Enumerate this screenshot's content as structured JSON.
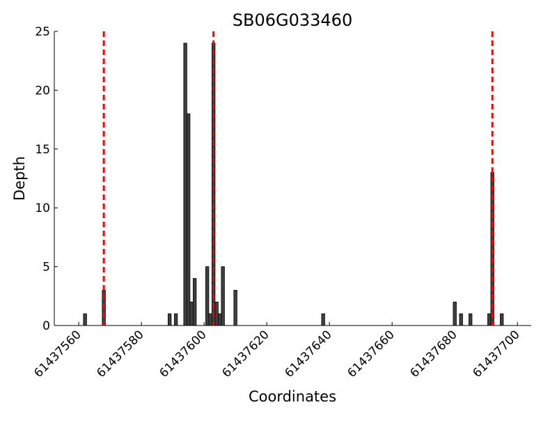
{
  "chart_data": {
    "type": "bar",
    "title": "SB06G033460",
    "xlabel": "Coordinates",
    "ylabel": "Depth",
    "x": [
      61437562,
      61437568,
      61437589,
      61437591,
      61437594,
      61437595,
      61437596,
      61437597,
      61437601,
      61437602,
      61437603,
      61437604,
      61437605,
      61437606,
      61437610,
      61437638,
      61437680,
      61437682,
      61437685,
      61437691,
      61437692,
      61437695
    ],
    "values": [
      1,
      3,
      1,
      1,
      24,
      18,
      2,
      4,
      5,
      1,
      24,
      2,
      1,
      5,
      3,
      1,
      2,
      1,
      1,
      1,
      13,
      1
    ],
    "color": "#404040",
    "vlines": [
      61437568,
      61437603,
      61437692
    ],
    "vline_color": "#ff0000",
    "xlim": [
      61437552.2,
      61437704.4
    ],
    "xticks": [
      61437560,
      61437580,
      61437600,
      61437620,
      61437640,
      61437660,
      61437680,
      61437700
    ],
    "ylim": [
      0,
      25
    ],
    "yticks": [
      0,
      5,
      10,
      15,
      20,
      25
    ],
    "grid": false
  }
}
